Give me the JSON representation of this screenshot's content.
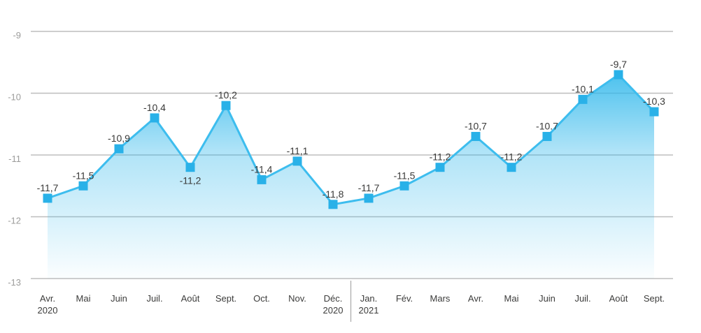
{
  "chart_data": {
    "type": "area",
    "title": "",
    "xlabel": "",
    "ylabel": "",
    "categories": [
      [
        "Avr.",
        "2020"
      ],
      [
        "Mai"
      ],
      [
        "Juin"
      ],
      [
        "Juil."
      ],
      [
        "Août"
      ],
      [
        "Sept."
      ],
      [
        "Oct."
      ],
      [
        "Nov."
      ],
      [
        "Déc.",
        "2020"
      ],
      [
        "Jan.",
        "2021"
      ],
      [
        "Fév."
      ],
      [
        "Mars"
      ],
      [
        "Avr."
      ],
      [
        "Mai"
      ],
      [
        "Juin"
      ],
      [
        "Juil."
      ],
      [
        "Août"
      ],
      [
        "Sept."
      ]
    ],
    "values": [
      -11.7,
      -11.5,
      -10.9,
      -10.4,
      -11.2,
      -10.2,
      -11.4,
      -11.1,
      -11.8,
      -11.7,
      -11.5,
      -11.2,
      -10.7,
      -11.2,
      -10.7,
      -10.1,
      -9.7,
      -10.3
    ],
    "value_labels": [
      "-11,7",
      "-11,5",
      "-10,9",
      "-10,4",
      "-11,2",
      "-10,2",
      "-11,4",
      "-11,1",
      "-11,8",
      "-11,7",
      "-11,5",
      "-11,2",
      "-10,7",
      "-11,2",
      "-10.7",
      "-10,1",
      "-9,7",
      "-10,3"
    ],
    "value_labels_below_indices": [
      4
    ],
    "yticks": [
      -9,
      -10,
      -11,
      -12,
      -13
    ],
    "ytick_labels": [
      "-9",
      "-10",
      "-11",
      "-12",
      "-13"
    ],
    "ylim": [
      -13,
      -9
    ],
    "grid": true,
    "legend": "none",
    "marker_shape": "square",
    "year_separator_between_indices": [
      8,
      9
    ],
    "colors": {
      "line": "#3dbdee",
      "marker": "#29b1e8",
      "area_base": "#2eb7eb",
      "grid": "#bdbdbd",
      "ytick_text": "#9c9c9b",
      "xtick_text": "#3c3c3b",
      "value_text": "#3a3a39",
      "separator": "#a8a8a8",
      "background": "#ffffff"
    }
  }
}
